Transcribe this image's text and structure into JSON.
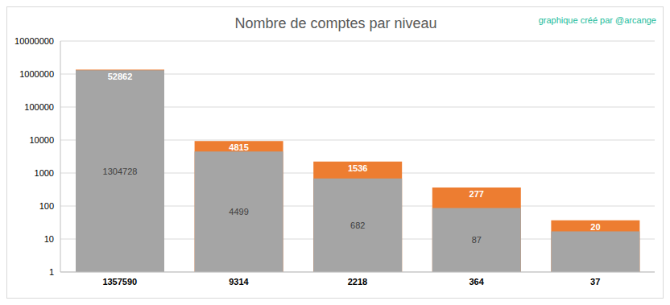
{
  "chart_data": {
    "type": "bar",
    "title": "Nombre de comptes par niveau",
    "annotation": "graphique créé par @arcange",
    "categories": [
      "1357590",
      "9314",
      "2218",
      "364",
      "37"
    ],
    "series": [
      {
        "color": "#a5a5a5",
        "values": [
          1304728,
          4499,
          682,
          87,
          17
        ],
        "value_labels": [
          "1304728",
          "4499",
          "682",
          "87",
          null
        ]
      },
      {
        "color": "#ed7d31",
        "values": [
          52862,
          4815,
          1536,
          277,
          20
        ]
      }
    ],
    "stacked": true,
    "log": "y",
    "ylim": [
      1,
      10000000
    ],
    "yticks": [
      1,
      10,
      100,
      1000,
      10000,
      100000,
      1000000,
      10000000
    ],
    "grid": true,
    "data_labels": true
  }
}
